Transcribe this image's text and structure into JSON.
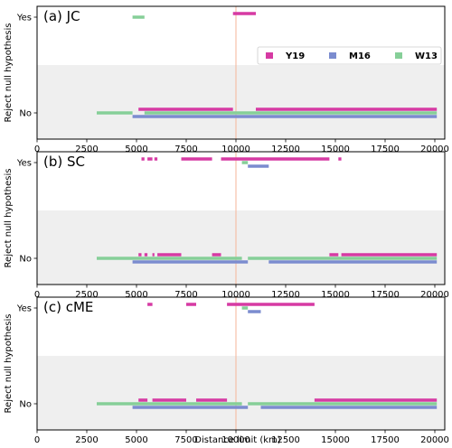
{
  "colors": {
    "Y19": "#d63aa3",
    "M16": "#7b8ccf",
    "W13": "#86cf98",
    "shade": "#efefef",
    "vline": "#f4b59a"
  },
  "chart_data": {
    "type": "timeline",
    "xlabel": "Distance limit (km)",
    "ylabel": "Reject null hypothesis",
    "xlim": [
      0,
      20500
    ],
    "xticks": [
      "0",
      "2500",
      "5000",
      "7500",
      "10000",
      "12500",
      "15000",
      "17500",
      "20000"
    ],
    "yticks": [
      "No",
      "Yes"
    ],
    "reference_line_x": 10000,
    "legend": {
      "entries": [
        "Y19",
        "M16",
        "W13"
      ],
      "placement": "upper-right of panel (a)"
    },
    "panels": [
      {
        "label": "(a) JC",
        "series": [
          {
            "name": "Y19",
            "segments": [
              {
                "start": 5100,
                "end": 9850,
                "value": "No"
              },
              {
                "start": 9850,
                "end": 11000,
                "value": "Yes"
              },
              {
                "start": 11000,
                "end": 20100,
                "value": "No"
              }
            ]
          },
          {
            "name": "M16",
            "segments": [
              {
                "start": 4800,
                "end": 20100,
                "value": "No"
              }
            ]
          },
          {
            "name": "W13",
            "segments": [
              {
                "start": 3000,
                "end": 4800,
                "value": "No"
              },
              {
                "start": 4800,
                "end": 5400,
                "value": "Yes"
              },
              {
                "start": 5400,
                "end": 20100,
                "value": "No"
              }
            ]
          }
        ]
      },
      {
        "label": "(b) SC",
        "series": [
          {
            "name": "Y19",
            "segments": [
              {
                "start": 5100,
                "end": 5250,
                "value": "No"
              },
              {
                "start": 5250,
                "end": 5400,
                "value": "Yes"
              },
              {
                "start": 5400,
                "end": 5550,
                "value": "No"
              },
              {
                "start": 5550,
                "end": 5800,
                "value": "Yes"
              },
              {
                "start": 5800,
                "end": 5900,
                "value": "No"
              },
              {
                "start": 5900,
                "end": 6050,
                "value": "Yes"
              },
              {
                "start": 6050,
                "end": 7250,
                "value": "No"
              },
              {
                "start": 7250,
                "end": 8800,
                "value": "Yes"
              },
              {
                "start": 8800,
                "end": 9250,
                "value": "No"
              },
              {
                "start": 9250,
                "end": 14700,
                "value": "Yes"
              },
              {
                "start": 14700,
                "end": 15150,
                "value": "No"
              },
              {
                "start": 15150,
                "end": 15300,
                "value": "Yes"
              },
              {
                "start": 15300,
                "end": 20100,
                "value": "No"
              }
            ]
          },
          {
            "name": "M16",
            "segments": [
              {
                "start": 4800,
                "end": 10600,
                "value": "No"
              },
              {
                "start": 10600,
                "end": 11650,
                "value": "Yes"
              },
              {
                "start": 11650,
                "end": 20100,
                "value": "No"
              }
            ]
          },
          {
            "name": "W13",
            "segments": [
              {
                "start": 3000,
                "end": 10300,
                "value": "No"
              },
              {
                "start": 10300,
                "end": 10600,
                "value": "Yes"
              },
              {
                "start": 10600,
                "end": 20100,
                "value": "No"
              }
            ]
          }
        ]
      },
      {
        "label": "(c) cME",
        "series": [
          {
            "name": "Y19",
            "segments": [
              {
                "start": 5100,
                "end": 5550,
                "value": "No"
              },
              {
                "start": 5550,
                "end": 5800,
                "value": "Yes"
              },
              {
                "start": 5800,
                "end": 7500,
                "value": "No"
              },
              {
                "start": 7500,
                "end": 8000,
                "value": "Yes"
              },
              {
                "start": 8000,
                "end": 9550,
                "value": "No"
              },
              {
                "start": 9550,
                "end": 13950,
                "value": "Yes"
              },
              {
                "start": 13950,
                "end": 20100,
                "value": "No"
              }
            ]
          },
          {
            "name": "M16",
            "segments": [
              {
                "start": 4800,
                "end": 10600,
                "value": "No"
              },
              {
                "start": 10600,
                "end": 11250,
                "value": "Yes"
              },
              {
                "start": 11250,
                "end": 20100,
                "value": "No"
              }
            ]
          },
          {
            "name": "W13",
            "segments": [
              {
                "start": 3000,
                "end": 10300,
                "value": "No"
              },
              {
                "start": 10300,
                "end": 10600,
                "value": "Yes"
              },
              {
                "start": 10600,
                "end": 20100,
                "value": "No"
              }
            ]
          }
        ]
      }
    ]
  }
}
